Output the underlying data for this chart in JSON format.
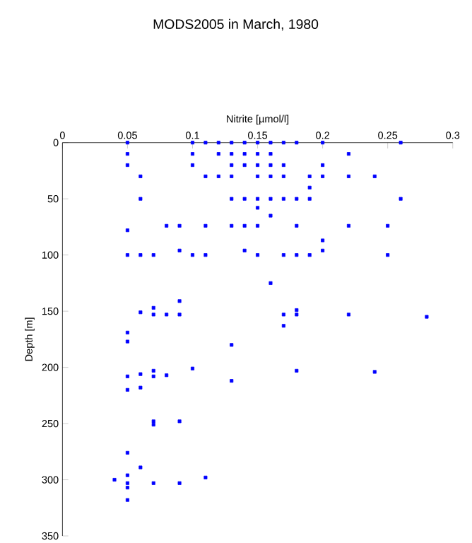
{
  "chart_data": {
    "type": "scatter",
    "title": "MODS2005 in March, 1980",
    "xlabel": "Nitrite [µmol/l]",
    "ylabel": "Depth [m]",
    "color": "#0000ff",
    "marker": "square",
    "grid": false,
    "x": [
      0.05,
      0.1,
      0.11,
      0.12,
      0.13,
      0.14,
      0.15,
      0.16,
      0.17,
      0.18,
      0.2,
      0.26,
      0.05,
      0.1,
      0.12,
      0.13,
      0.14,
      0.15,
      0.16,
      0.22,
      0.05,
      0.1,
      0.13,
      0.14,
      0.15,
      0.16,
      0.17,
      0.2,
      0.06,
      0.11,
      0.12,
      0.13,
      0.15,
      0.16,
      0.17,
      0.19,
      0.2,
      0.22,
      0.24,
      0.19,
      0.06,
      0.13,
      0.14,
      0.15,
      0.16,
      0.17,
      0.18,
      0.19,
      0.26,
      0.15,
      0.16,
      0.08,
      0.09,
      0.11,
      0.13,
      0.14,
      0.15,
      0.18,
      0.22,
      0.25,
      0.05,
      0.2,
      0.09,
      0.14,
      0.2,
      0.05,
      0.06,
      0.07,
      0.1,
      0.11,
      0.15,
      0.17,
      0.18,
      0.19,
      0.25,
      0.16,
      0.09,
      0.07,
      0.18,
      0.06,
      0.07,
      0.08,
      0.09,
      0.17,
      0.18,
      0.22,
      0.28,
      0.17,
      0.05,
      0.05,
      0.13,
      0.1,
      0.07,
      0.18,
      0.24,
      0.06,
      0.08,
      0.05,
      0.07,
      0.13,
      0.06,
      0.05,
      0.07,
      0.09,
      0.07,
      0.05,
      0.06,
      0.05,
      0.11,
      0.04,
      0.05,
      0.07,
      0.09,
      0.05,
      0.05
    ],
    "values": [
      0,
      0,
      0,
      0,
      0,
      0,
      0,
      0,
      0,
      0,
      0,
      0,
      10,
      10,
      10,
      10,
      10,
      10,
      10,
      10,
      20,
      20,
      20,
      20,
      20,
      20,
      20,
      20,
      30,
      30,
      30,
      30,
      30,
      30,
      30,
      30,
      30,
      30,
      30,
      40,
      50,
      50,
      50,
      50,
      50,
      50,
      50,
      50,
      50,
      58,
      65,
      74,
      74,
      74,
      74,
      74,
      74,
      74,
      74,
      74,
      78,
      87,
      96,
      96,
      96,
      100,
      100,
      100,
      100,
      100,
      100,
      100,
      100,
      100,
      100,
      125,
      141,
      147,
      149,
      151,
      153,
      153,
      153,
      153,
      153,
      153,
      155,
      163,
      169,
      177,
      180,
      201,
      203,
      203,
      204,
      206,
      207,
      208,
      208,
      212,
      218,
      220,
      248,
      248,
      251,
      276,
      289,
      296,
      298,
      300,
      303,
      303,
      303,
      307,
      318
    ],
    "xlim": [
      0,
      0.3
    ],
    "xticks": [
      0,
      0.05,
      0.1,
      0.15,
      0.2,
      0.25,
      0.3
    ],
    "ylim": [
      350,
      0
    ],
    "yticks": [
      0,
      50,
      100,
      150,
      200,
      250,
      300,
      350
    ]
  }
}
